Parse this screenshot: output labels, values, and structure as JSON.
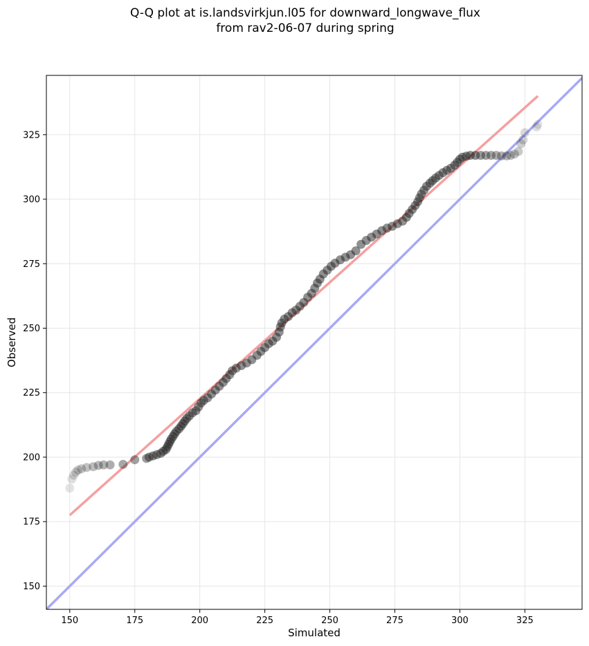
{
  "chart_data": {
    "type": "scatter",
    "title": "Q-Q plot at is.landsvirkjun.l05 for downward_longwave_flux",
    "subtitle": "from rav2-06-07 during spring",
    "xlabel": "Simulated",
    "ylabel": "Observed",
    "xlim": [
      141,
      347
    ],
    "ylim": [
      141,
      348
    ],
    "xticks": [
      150,
      175,
      200,
      225,
      250,
      275,
      300,
      325
    ],
    "yticks": [
      150,
      175,
      200,
      225,
      250,
      275,
      300,
      325
    ],
    "grid": true,
    "colors": {
      "points": "#222222",
      "fit_line": "#f4a0a0",
      "identity_line": "#a8a8f4"
    },
    "fit_line": {
      "from": [
        150,
        177.5
      ],
      "to": [
        330,
        340
      ]
    },
    "identity_line": {
      "from": [
        141,
        141
      ],
      "to": [
        347,
        347
      ]
    },
    "points": [
      [
        150,
        188
      ],
      [
        150.8,
        191.5
      ],
      [
        151.5,
        193
      ],
      [
        152.3,
        194.2
      ],
      [
        153.2,
        195
      ],
      [
        154.5,
        195.5
      ],
      [
        156.5,
        196
      ],
      [
        159,
        196.3
      ],
      [
        161,
        196.8
      ],
      [
        163,
        197
      ],
      [
        165.5,
        197
      ],
      [
        170.5,
        197.2
      ],
      [
        175,
        199
      ],
      [
        179.5,
        199.5
      ],
      [
        180.5,
        200
      ],
      [
        182,
        200.5
      ],
      [
        183.5,
        201
      ],
      [
        185,
        201.5
      ],
      [
        186,
        202.3
      ],
      [
        187,
        203
      ],
      [
        187.5,
        204
      ],
      [
        188,
        205
      ],
      [
        188.5,
        206
      ],
      [
        189,
        207
      ],
      [
        189.7,
        208
      ],
      [
        190.3,
        209
      ],
      [
        191,
        210
      ],
      [
        192,
        211
      ],
      [
        192.8,
        212
      ],
      [
        193.5,
        213
      ],
      [
        194.2,
        214
      ],
      [
        195,
        215
      ],
      [
        196,
        216
      ],
      [
        197.2,
        217.2
      ],
      [
        198.5,
        218
      ],
      [
        199.5,
        219.5
      ],
      [
        200.5,
        221
      ],
      [
        201.5,
        222
      ],
      [
        203,
        223
      ],
      [
        204.5,
        224.5
      ],
      [
        206,
        226
      ],
      [
        207.5,
        227.5
      ],
      [
        209,
        229
      ],
      [
        210.2,
        230.5
      ],
      [
        211.5,
        232
      ],
      [
        212.5,
        233.5
      ],
      [
        214,
        234.5
      ],
      [
        216,
        235.5
      ],
      [
        218,
        236.5
      ],
      [
        220,
        237.8
      ],
      [
        222,
        239.5
      ],
      [
        223.5,
        241
      ],
      [
        225,
        242.5
      ],
      [
        226.5,
        244
      ],
      [
        228,
        245
      ],
      [
        229.5,
        246.5
      ],
      [
        230.5,
        248.5
      ],
      [
        231,
        250.5
      ],
      [
        231.5,
        252
      ],
      [
        232.5,
        253.5
      ],
      [
        234,
        254.5
      ],
      [
        235.5,
        256
      ],
      [
        237,
        257
      ],
      [
        238.5,
        258.5
      ],
      [
        240,
        260
      ],
      [
        241.5,
        262
      ],
      [
        243,
        263.5
      ],
      [
        244.2,
        265.5
      ],
      [
        245.2,
        267.5
      ],
      [
        246.2,
        269
      ],
      [
        247.5,
        271
      ],
      [
        249,
        272.5
      ],
      [
        250.5,
        274
      ],
      [
        252,
        275.2
      ],
      [
        254,
        276.5
      ],
      [
        256,
        277.5
      ],
      [
        258,
        278.5
      ],
      [
        260,
        280
      ],
      [
        262,
        282.5
      ],
      [
        264,
        284
      ],
      [
        266,
        285.3
      ],
      [
        268,
        286.5
      ],
      [
        270,
        287.8
      ],
      [
        272,
        288.8
      ],
      [
        274,
        289.5
      ],
      [
        276,
        290.5
      ],
      [
        278,
        291.5
      ],
      [
        279.5,
        293
      ],
      [
        280.5,
        294.5
      ],
      [
        281.7,
        296
      ],
      [
        282.8,
        297.5
      ],
      [
        283.8,
        299
      ],
      [
        284.5,
        300.5
      ],
      [
        285.2,
        302
      ],
      [
        286.2,
        303.5
      ],
      [
        287.2,
        305
      ],
      [
        288.5,
        306.2
      ],
      [
        289.5,
        307.2
      ],
      [
        290.7,
        308.2
      ],
      [
        292,
        309.2
      ],
      [
        293.5,
        310.3
      ],
      [
        295,
        311.2
      ],
      [
        296.5,
        312
      ],
      [
        298,
        313.2
      ],
      [
        299,
        314.3
      ],
      [
        300,
        315.5
      ],
      [
        301,
        316.3
      ],
      [
        302.5,
        316.7
      ],
      [
        304,
        317
      ],
      [
        306,
        317
      ],
      [
        308,
        317
      ],
      [
        310,
        317
      ],
      [
        312,
        317
      ],
      [
        314,
        317
      ],
      [
        316,
        316.8
      ],
      [
        318,
        316.8
      ],
      [
        319.5,
        317
      ],
      [
        321,
        317.5
      ],
      [
        322.5,
        318.5
      ],
      [
        323.5,
        321.5
      ],
      [
        324.3,
        323
      ],
      [
        325,
        325.8
      ],
      [
        329.5,
        328
      ],
      [
        330,
        329
      ]
    ]
  }
}
